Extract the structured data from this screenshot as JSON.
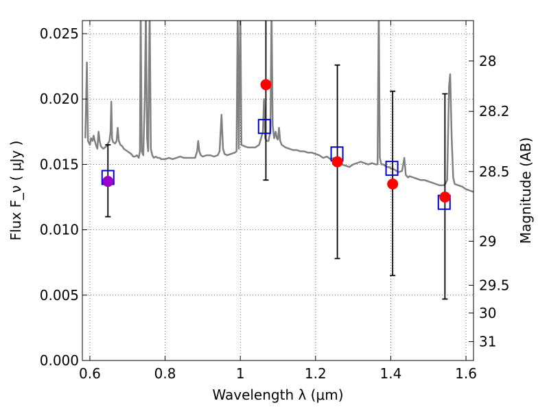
{
  "chart_data": {
    "type": "scatter",
    "xlabel": "Wavelength  λ (μm)",
    "ylabel": "Flux  F_ν  ( μJy )",
    "y2label": "Magnitude (AB)",
    "xlim": [
      0.58,
      1.62
    ],
    "ylim": [
      0.0,
      0.026
    ],
    "grid": true,
    "x_ticks": [
      {
        "value": 0.6,
        "label": "0.6"
      },
      {
        "value": 0.8,
        "label": "0.8"
      },
      {
        "value": 1.0,
        "label": "1"
      },
      {
        "value": 1.2,
        "label": "1.2"
      },
      {
        "value": 1.4,
        "label": "1.4"
      },
      {
        "value": 1.6,
        "label": "1.6"
      }
    ],
    "y_ticks": [
      {
        "value": 0.0,
        "label": "0.000"
      },
      {
        "value": 0.005,
        "label": "0.005"
      },
      {
        "value": 0.01,
        "label": "0.010"
      },
      {
        "value": 0.015,
        "label": "0.015"
      },
      {
        "value": 0.02,
        "label": "0.020"
      },
      {
        "value": 0.025,
        "label": "0.025"
      }
    ],
    "y2_ticks": [
      {
        "value": 28,
        "label": "28"
      },
      {
        "value": 28.2,
        "label": "28.2"
      },
      {
        "value": 28.5,
        "label": "28.5"
      },
      {
        "value": 29,
        "label": "29"
      },
      {
        "value": 29.5,
        "label": "29.5"
      },
      {
        "value": 30,
        "label": "30"
      },
      {
        "value": 31,
        "label": "31"
      }
    ],
    "colors": {
      "spectrum": "#808080",
      "observed": "#ff0000",
      "model": "#0000cc",
      "errorbar": "#000000",
      "first_point": "#9900cc"
    },
    "series": [
      {
        "kind": "line",
        "points": [
          [
            0.588,
            0.017
          ],
          [
            0.592,
            0.0228
          ],
          [
            0.595,
            0.0168
          ],
          [
            0.6,
            0.0165
          ],
          [
            0.603,
            0.017
          ],
          [
            0.607,
            0.0168
          ],
          [
            0.61,
            0.0172
          ],
          [
            0.613,
            0.0168
          ],
          [
            0.617,
            0.0164
          ],
          [
            0.62,
            0.0162
          ],
          [
            0.623,
            0.0175
          ],
          [
            0.626,
            0.0168
          ],
          [
            0.629,
            0.0164
          ],
          [
            0.632,
            0.0163
          ],
          [
            0.636,
            0.0162
          ],
          [
            0.64,
            0.0163
          ],
          [
            0.644,
            0.0164
          ],
          [
            0.648,
            0.0166
          ],
          [
            0.652,
            0.0168
          ],
          [
            0.655,
            0.0175
          ],
          [
            0.657,
            0.0198
          ],
          [
            0.659,
            0.017
          ],
          [
            0.662,
            0.0167
          ],
          [
            0.667,
            0.0166
          ],
          [
            0.671,
            0.0168
          ],
          [
            0.674,
            0.0178
          ],
          [
            0.677,
            0.0168
          ],
          [
            0.681,
            0.0165
          ],
          [
            0.686,
            0.0164
          ],
          [
            0.69,
            0.0162
          ],
          [
            0.695,
            0.0161
          ],
          [
            0.7,
            0.016
          ],
          [
            0.705,
            0.0159
          ],
          [
            0.71,
            0.0158
          ],
          [
            0.715,
            0.0156
          ],
          [
            0.72,
            0.0156
          ],
          [
            0.725,
            0.0157
          ],
          [
            0.73,
            0.0155
          ],
          [
            0.733,
            0.016
          ],
          [
            0.735,
            0.027
          ],
          [
            0.738,
            0.016
          ],
          [
            0.742,
            0.0157
          ],
          [
            0.746,
            0.02
          ],
          [
            0.749,
            0.027
          ],
          [
            0.752,
            0.017
          ],
          [
            0.755,
            0.016
          ],
          [
            0.759,
            0.027
          ],
          [
            0.762,
            0.0162
          ],
          [
            0.766,
            0.0157
          ],
          [
            0.77,
            0.0155
          ],
          [
            0.775,
            0.0156
          ],
          [
            0.78,
            0.0155
          ],
          [
            0.785,
            0.0155
          ],
          [
            0.79,
            0.0154
          ],
          [
            0.8,
            0.0154
          ],
          [
            0.81,
            0.0155
          ],
          [
            0.82,
            0.0154
          ],
          [
            0.83,
            0.0155
          ],
          [
            0.84,
            0.0156
          ],
          [
            0.85,
            0.0155
          ],
          [
            0.86,
            0.0155
          ],
          [
            0.87,
            0.0155
          ],
          [
            0.88,
            0.0155
          ],
          [
            0.885,
            0.016
          ],
          [
            0.888,
            0.0168
          ],
          [
            0.891,
            0.016
          ],
          [
            0.895,
            0.0157
          ],
          [
            0.9,
            0.0156
          ],
          [
            0.91,
            0.0157
          ],
          [
            0.92,
            0.0157
          ],
          [
            0.93,
            0.0156
          ],
          [
            0.94,
            0.0157
          ],
          [
            0.945,
            0.016
          ],
          [
            0.95,
            0.0188
          ],
          [
            0.954,
            0.0162
          ],
          [
            0.958,
            0.0158
          ],
          [
            0.965,
            0.0157
          ],
          [
            0.975,
            0.0158
          ],
          [
            0.985,
            0.0159
          ],
          [
            0.99,
            0.016
          ],
          [
            0.993,
            0.027
          ],
          [
            0.996,
            0.0162
          ],
          [
            1.0,
            0.027
          ],
          [
            1.003,
            0.0165
          ],
          [
            1.01,
            0.0164
          ],
          [
            1.02,
            0.0163
          ],
          [
            1.03,
            0.0163
          ],
          [
            1.04,
            0.0163
          ],
          [
            1.05,
            0.0165
          ],
          [
            1.06,
            0.0175
          ],
          [
            1.063,
            0.02
          ],
          [
            1.066,
            0.017
          ],
          [
            1.07,
            0.0168
          ],
          [
            1.075,
            0.0168
          ],
          [
            1.08,
            0.0175
          ],
          [
            1.083,
            0.027
          ],
          [
            1.086,
            0.018
          ],
          [
            1.09,
            0.017
          ],
          [
            1.094,
            0.0175
          ],
          [
            1.097,
            0.017
          ],
          [
            1.1,
            0.0169
          ],
          [
            1.103,
            0.0178
          ],
          [
            1.106,
            0.0168
          ],
          [
            1.11,
            0.0165
          ],
          [
            1.12,
            0.0163
          ],
          [
            1.13,
            0.0162
          ],
          [
            1.14,
            0.0161
          ],
          [
            1.15,
            0.0161
          ],
          [
            1.16,
            0.016
          ],
          [
            1.17,
            0.016
          ],
          [
            1.18,
            0.0159
          ],
          [
            1.19,
            0.0159
          ],
          [
            1.2,
            0.0158
          ],
          [
            1.21,
            0.0157
          ],
          [
            1.22,
            0.0155
          ],
          [
            1.23,
            0.0156
          ],
          [
            1.24,
            0.0154
          ],
          [
            1.25,
            0.0155
          ],
          [
            1.26,
            0.0152
          ],
          [
            1.27,
            0.015
          ],
          [
            1.28,
            0.0149
          ],
          [
            1.29,
            0.0148
          ],
          [
            1.3,
            0.015
          ],
          [
            1.31,
            0.0151
          ],
          [
            1.32,
            0.0152
          ],
          [
            1.33,
            0.0151
          ],
          [
            1.34,
            0.015
          ],
          [
            1.35,
            0.0151
          ],
          [
            1.36,
            0.015
          ],
          [
            1.365,
            0.015
          ],
          [
            1.368,
            0.027
          ],
          [
            1.371,
            0.0155
          ],
          [
            1.375,
            0.015
          ],
          [
            1.38,
            0.015
          ],
          [
            1.39,
            0.0148
          ],
          [
            1.395,
            0.0148
          ],
          [
            1.4,
            0.0147
          ],
          [
            1.41,
            0.0146
          ],
          [
            1.42,
            0.0144
          ],
          [
            1.43,
            0.0145
          ],
          [
            1.436,
            0.0155
          ],
          [
            1.44,
            0.0142
          ],
          [
            1.446,
            0.014
          ],
          [
            1.45,
            0.0141
          ],
          [
            1.46,
            0.014
          ],
          [
            1.47,
            0.0139
          ],
          [
            1.48,
            0.0138
          ],
          [
            1.49,
            0.0138
          ],
          [
            1.5,
            0.0137
          ],
          [
            1.51,
            0.0136
          ],
          [
            1.52,
            0.0135
          ],
          [
            1.53,
            0.0134
          ],
          [
            1.54,
            0.0134
          ],
          [
            1.545,
            0.0135
          ],
          [
            1.55,
            0.0138
          ],
          [
            1.555,
            0.021
          ],
          [
            1.558,
            0.0219
          ],
          [
            1.562,
            0.017
          ],
          [
            1.566,
            0.014
          ],
          [
            1.57,
            0.0135
          ],
          [
            1.58,
            0.0134
          ],
          [
            1.59,
            0.0133
          ],
          [
            1.6,
            0.0131
          ],
          [
            1.61,
            0.013
          ],
          [
            1.62,
            0.0129
          ]
        ]
      },
      {
        "kind": "observed",
        "points": [
          {
            "x": 0.648,
            "y": 0.0137,
            "yerr_low": 0.011,
            "yerr_high": 0.0165
          },
          {
            "x": 1.068,
            "y": 0.0211,
            "yerr_low": 0.0138,
            "yerr_high": 0.0272
          },
          {
            "x": 1.258,
            "y": 0.0152,
            "yerr_low": 0.0078,
            "yerr_high": 0.0226
          },
          {
            "x": 1.405,
            "y": 0.0135,
            "yerr_low": 0.0065,
            "yerr_high": 0.0206
          },
          {
            "x": 1.544,
            "y": 0.0125,
            "yerr_low": 0.0047,
            "yerr_high": 0.0204
          }
        ]
      },
      {
        "kind": "model",
        "points": [
          {
            "x": 0.648,
            "y": 0.014
          },
          {
            "x": 1.064,
            "y": 0.0179
          },
          {
            "x": 1.257,
            "y": 0.0158
          },
          {
            "x": 1.403,
            "y": 0.0147
          },
          {
            "x": 1.542,
            "y": 0.0121
          }
        ]
      }
    ]
  }
}
